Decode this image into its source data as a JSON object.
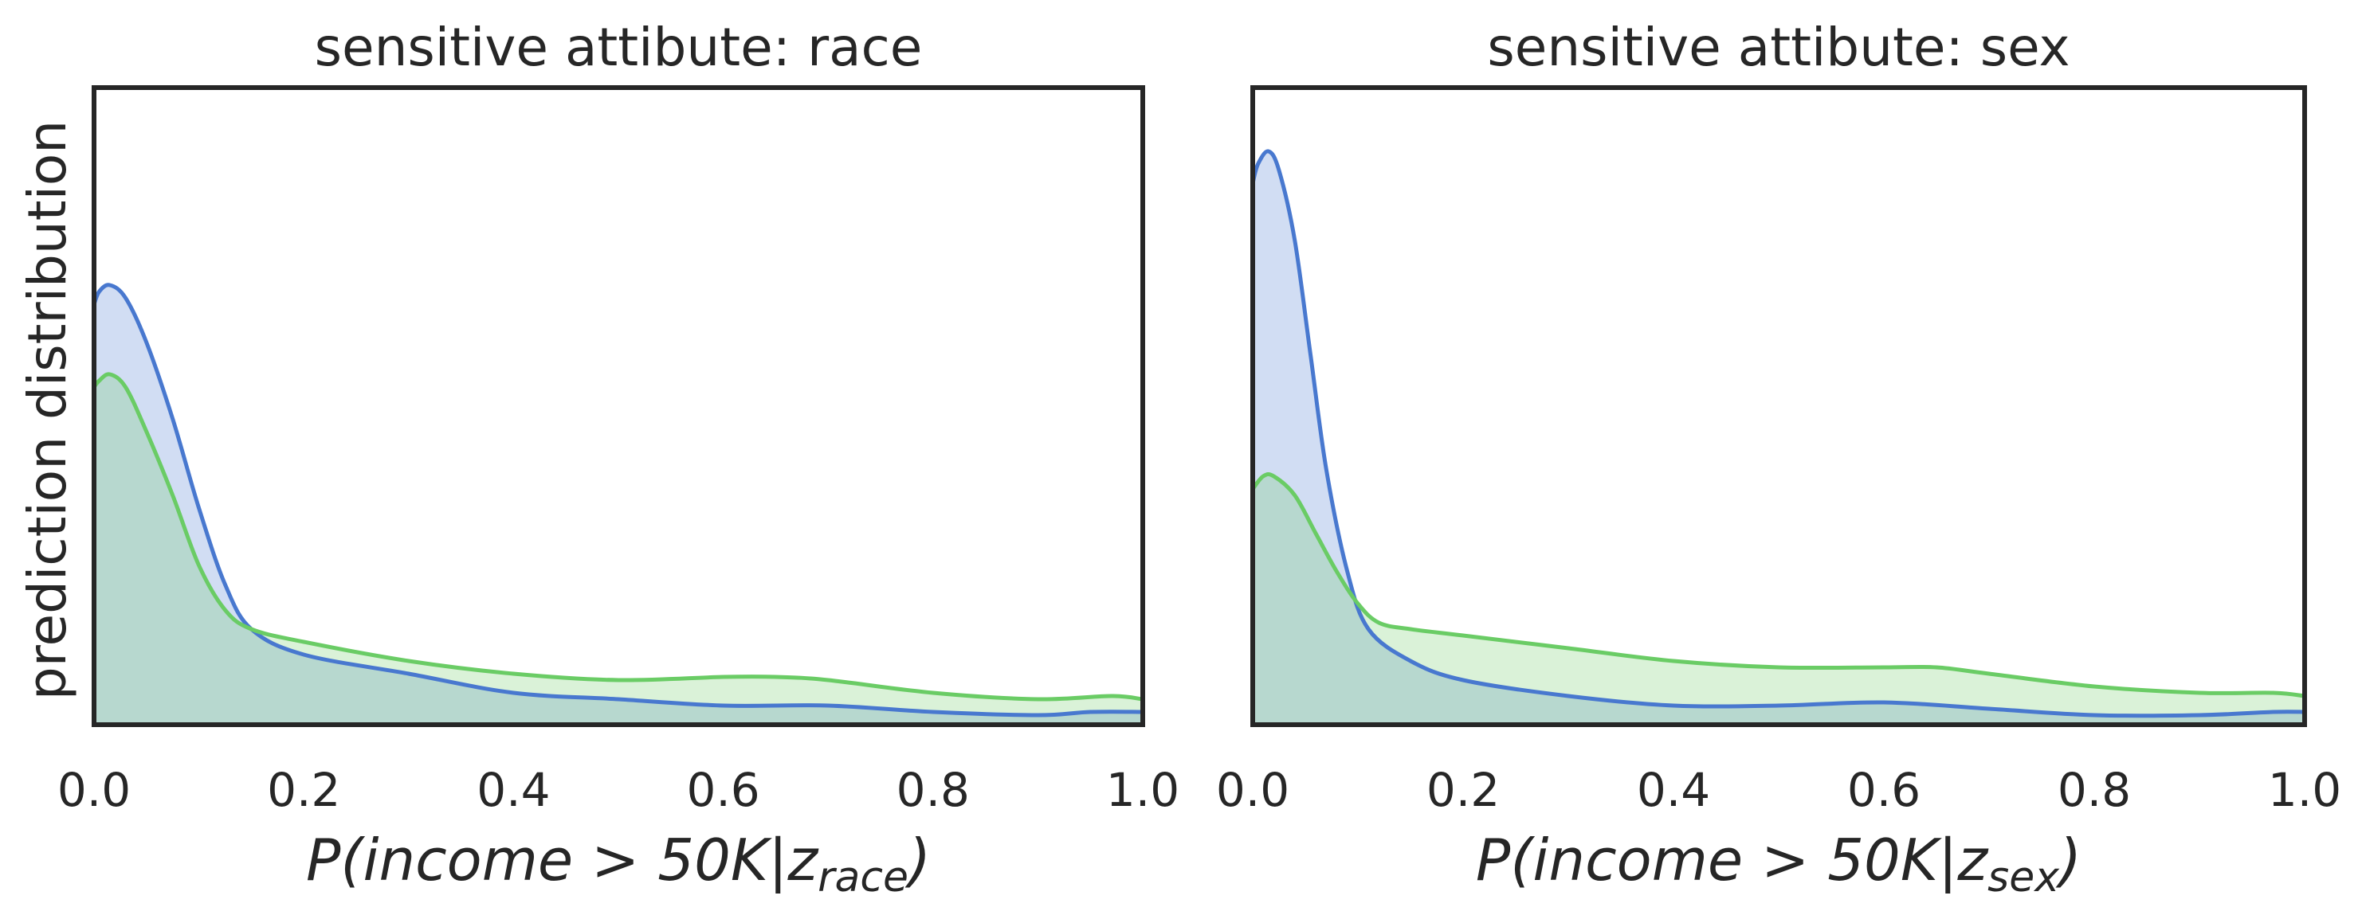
{
  "colors": {
    "series_a": "#4878cf",
    "series_b": "#6acc65",
    "frame": "#262626",
    "background": "#ffffff"
  },
  "chart_data": [
    {
      "type": "area",
      "title": "sensitive attibute: race",
      "xlabel": {
        "prefix": "P(income > 50K|z",
        "sub": "race",
        "suffix": ")"
      },
      "ylabel": "prediction distribution",
      "xlim": [
        0.0,
        1.0
      ],
      "ylim": [
        0,
        1
      ],
      "x_ticks": [
        "0.0",
        "0.2",
        "0.4",
        "0.6",
        "0.8",
        "1.0"
      ],
      "grid": false,
      "legend": "none",
      "series": [
        {
          "color": "#4878cf",
          "points": [
            [
              0.0,
              0.66
            ],
            [
              0.005,
              0.68
            ],
            [
              0.015,
              0.69
            ],
            [
              0.03,
              0.67
            ],
            [
              0.05,
              0.6
            ],
            [
              0.075,
              0.48
            ],
            [
              0.1,
              0.34
            ],
            [
              0.125,
              0.22
            ],
            [
              0.15,
              0.15
            ],
            [
              0.2,
              0.11
            ],
            [
              0.3,
              0.08
            ],
            [
              0.4,
              0.05
            ],
            [
              0.5,
              0.04
            ],
            [
              0.6,
              0.03
            ],
            [
              0.7,
              0.03
            ],
            [
              0.8,
              0.02
            ],
            [
              0.9,
              0.015
            ],
            [
              0.95,
              0.02
            ],
            [
              1.0,
              0.02
            ]
          ]
        },
        {
          "color": "#6acc65",
          "points": [
            [
              0.0,
              0.53
            ],
            [
              0.005,
              0.54
            ],
            [
              0.015,
              0.55
            ],
            [
              0.03,
              0.53
            ],
            [
              0.05,
              0.46
            ],
            [
              0.075,
              0.36
            ],
            [
              0.1,
              0.25
            ],
            [
              0.125,
              0.18
            ],
            [
              0.15,
              0.15
            ],
            [
              0.2,
              0.13
            ],
            [
              0.3,
              0.1
            ],
            [
              0.4,
              0.08
            ],
            [
              0.5,
              0.07
            ],
            [
              0.6,
              0.075
            ],
            [
              0.65,
              0.075
            ],
            [
              0.7,
              0.07
            ],
            [
              0.8,
              0.05
            ],
            [
              0.9,
              0.04
            ],
            [
              0.97,
              0.045
            ],
            [
              1.0,
              0.04
            ]
          ]
        }
      ]
    },
    {
      "type": "area",
      "title": "sensitive attibute: sex",
      "xlabel": {
        "prefix": "P(income > 50K|z",
        "sub": "sex",
        "suffix": ")"
      },
      "xlim": [
        0.0,
        1.0
      ],
      "ylim": [
        0,
        1
      ],
      "x_ticks": [
        "0.0",
        "0.2",
        "0.4",
        "0.6",
        "0.8",
        "1.0"
      ],
      "grid": false,
      "legend": "none",
      "series": [
        {
          "color": "#4878cf",
          "points": [
            [
              0.0,
              0.85
            ],
            [
              0.005,
              0.88
            ],
            [
              0.015,
              0.9
            ],
            [
              0.025,
              0.87
            ],
            [
              0.04,
              0.76
            ],
            [
              0.055,
              0.58
            ],
            [
              0.07,
              0.4
            ],
            [
              0.09,
              0.24
            ],
            [
              0.11,
              0.15
            ],
            [
              0.15,
              0.1
            ],
            [
              0.2,
              0.07
            ],
            [
              0.3,
              0.045
            ],
            [
              0.4,
              0.03
            ],
            [
              0.5,
              0.03
            ],
            [
              0.6,
              0.035
            ],
            [
              0.7,
              0.025
            ],
            [
              0.8,
              0.015
            ],
            [
              0.9,
              0.015
            ],
            [
              0.97,
              0.02
            ],
            [
              1.0,
              0.02
            ]
          ]
        },
        {
          "color": "#6acc65",
          "points": [
            [
              0.0,
              0.37
            ],
            [
              0.01,
              0.39
            ],
            [
              0.02,
              0.39
            ],
            [
              0.04,
              0.36
            ],
            [
              0.06,
              0.3
            ],
            [
              0.08,
              0.24
            ],
            [
              0.1,
              0.19
            ],
            [
              0.12,
              0.16
            ],
            [
              0.15,
              0.15
            ],
            [
              0.2,
              0.14
            ],
            [
              0.3,
              0.12
            ],
            [
              0.4,
              0.1
            ],
            [
              0.5,
              0.09
            ],
            [
              0.6,
              0.09
            ],
            [
              0.65,
              0.09
            ],
            [
              0.7,
              0.08
            ],
            [
              0.8,
              0.06
            ],
            [
              0.9,
              0.05
            ],
            [
              0.97,
              0.05
            ],
            [
              1.0,
              0.045
            ]
          ]
        }
      ]
    }
  ]
}
